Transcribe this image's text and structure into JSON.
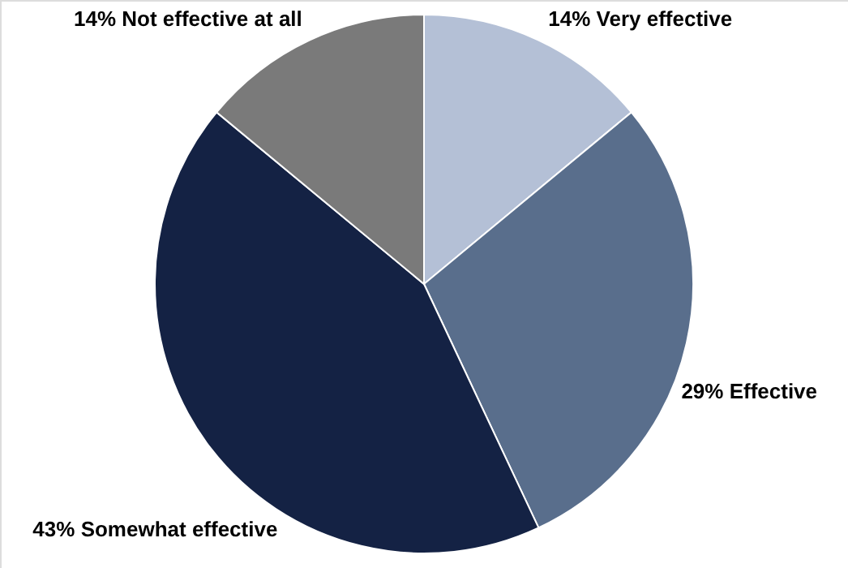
{
  "chart_data": {
    "type": "pie",
    "categories": [
      "Very effective",
      "Effective",
      "Somewhat effective",
      "Not effective at all"
    ],
    "values": [
      14,
      29,
      43,
      14
    ],
    "colors": [
      "#b4c0d6",
      "#596e8c",
      "#142244",
      "#7a7a7a"
    ],
    "value_labels": [
      "14%",
      "29%",
      "43%",
      "14%"
    ]
  }
}
